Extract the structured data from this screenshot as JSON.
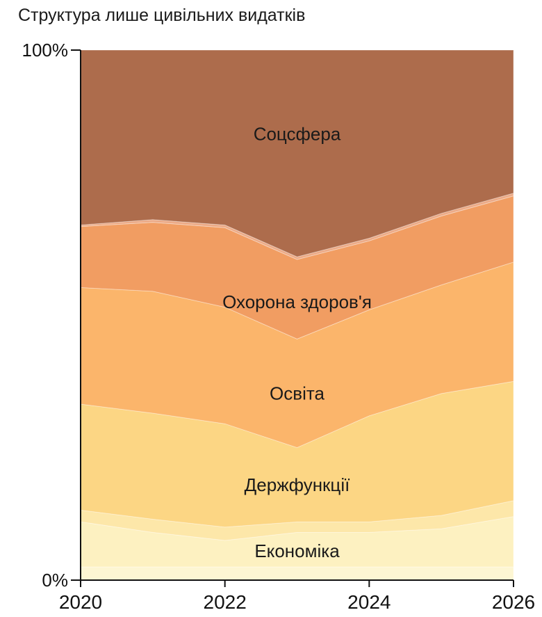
{
  "chart_data": {
    "type": "area",
    "stacked": true,
    "normalized_percent": true,
    "title": "Структура лише цивільних видатків",
    "xlabel": "",
    "ylabel": "",
    "x": [
      2020,
      2021,
      2022,
      2023,
      2024,
      2025,
      2026
    ],
    "xlim": [
      2020,
      2026
    ],
    "ylim": [
      0,
      100
    ],
    "x_ticks": [
      "2020",
      "2022",
      "2024",
      "2026"
    ],
    "y_ticks": [
      "0%",
      "100%"
    ],
    "grid": false,
    "legend": "none",
    "series": [
      {
        "values": [
          2.5,
          2.5,
          2.5,
          2.5,
          2.5,
          2.5,
          2.5
        ],
        "color": "#fdf6d3"
      },
      {
        "name": "Економіка",
        "values": [
          8.5,
          6.5,
          5,
          6.5,
          6.5,
          7.2,
          9.5
        ],
        "color": "#fdf1c1"
      },
      {
        "values": [
          2.2,
          2.5,
          2.5,
          2,
          2,
          2.5,
          3
        ],
        "color": "#fde7a9"
      },
      {
        "name": "Держфункції",
        "values": [
          20,
          20,
          19.5,
          14,
          20,
          23,
          22.5
        ],
        "color": "#fcd684"
      },
      {
        "name": "Освіта",
        "values": [
          22,
          23,
          22,
          20.5,
          20,
          20.5,
          22.5
        ],
        "color": "#fbb56b"
      },
      {
        "name": "Охорона здоров'я",
        "values": [
          11.5,
          13,
          15,
          15,
          13,
          13,
          12.5
        ],
        "color": "#f19d62"
      },
      {
        "values": [
          0.3,
          0.5,
          0.5,
          0.5,
          0.5,
          0.5,
          0.5
        ],
        "color": "#ecaa86"
      },
      {
        "name": "Соцсфера",
        "values": [
          33,
          32,
          33,
          39,
          35.5,
          30.8,
          27
        ],
        "color": "#ad6c4c"
      }
    ]
  }
}
